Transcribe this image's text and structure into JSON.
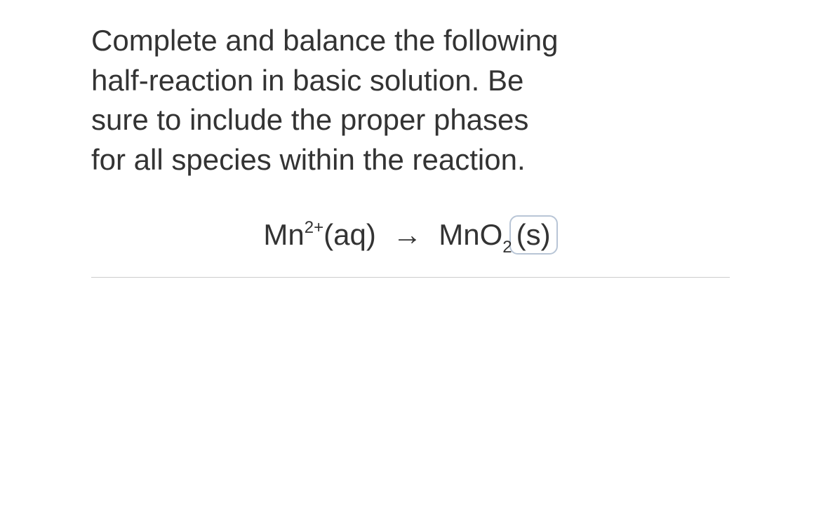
{
  "question": {
    "line1": "Complete and balance the following",
    "line2": "half-reaction in basic solution. Be",
    "line3": "sure to include the proper phases",
    "line4": "for all species within the reaction."
  },
  "equation": {
    "reactant": {
      "element": "Mn",
      "charge": "2+",
      "phase": "(aq)"
    },
    "arrow": "→",
    "product": {
      "element": "Mn",
      "oxygen": "O",
      "subscript": "2",
      "phase": "(s)"
    }
  },
  "styling": {
    "text_color": "#333333",
    "background_color": "#ffffff",
    "border_color": "#cccccc",
    "highlight_border": "#b8c5d6",
    "font_size_main": 42,
    "font_size_subsup": 24
  }
}
